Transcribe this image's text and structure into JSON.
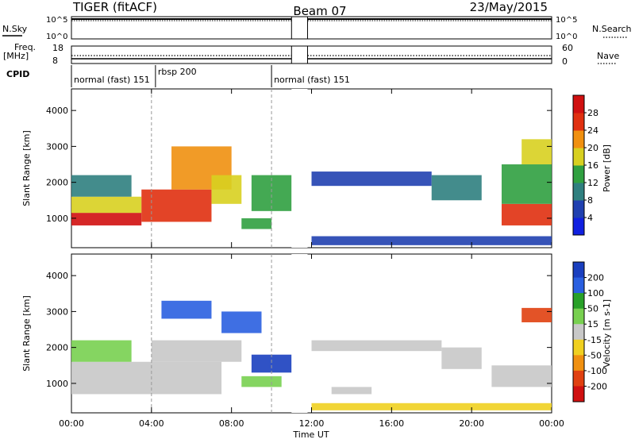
{
  "header": {
    "radar": "TIGER (fitACF)",
    "beam": "Beam 07",
    "date": "23/May/2015"
  },
  "summary": {
    "nsky_label": "N.Sky",
    "nsky_ticks": [
      "10^5",
      "10^0"
    ],
    "nsearch_label": "N.Search",
    "nsearch_ticks": [
      "10^5",
      "10^0"
    ],
    "freq_label": "Freq.",
    "freq_unit": "[MHz]",
    "freq_ticks": [
      "18",
      "8"
    ],
    "nave_label": "Nave",
    "nave_ticks": [
      "60",
      "0"
    ],
    "cpid_label": "CPID",
    "cpid_segments": [
      {
        "name": "normal (fast) 151",
        "start_h": 0,
        "end_h": 4.2
      },
      {
        "name": "rbsp 200",
        "start_h": 4.2,
        "end_h": 10
      },
      {
        "name": "normal (fast) 151",
        "start_h": 10,
        "end_h": 24
      }
    ],
    "data_gap_h": [
      11.0,
      11.8
    ]
  },
  "chart_data": [
    {
      "type": "heatmap",
      "name": "power-panel",
      "ylabel": "Slant Range [km]",
      "xlabel": "",
      "xlim": [
        0,
        24
      ],
      "ylim": [
        180,
        4600
      ],
      "yticks": [
        1000,
        2000,
        3000,
        4000
      ],
      "colorbar": {
        "label": "Power [dB]",
        "ticks": [
          "4",
          "8",
          "12",
          "16",
          "20",
          "24",
          "28"
        ],
        "colors": [
          "#1020e0",
          "#2040b0",
          "#2f7f7f",
          "#30a040",
          "#d8d020",
          "#f09010",
          "#e03010",
          "#d01010"
        ]
      },
      "bands": [
        {
          "t0": 0.0,
          "t1": 3.5,
          "r0": 800,
          "r1": 1150,
          "value": 28
        },
        {
          "t0": 0.0,
          "t1": 3.5,
          "r0": 1150,
          "r1": 1600,
          "value": 18
        },
        {
          "t0": 0.0,
          "t1": 3.0,
          "r0": 1600,
          "r1": 2200,
          "value": 8
        },
        {
          "t0": 3.5,
          "t1": 7.0,
          "r0": 900,
          "r1": 1800,
          "value": 26
        },
        {
          "t0": 5.0,
          "t1": 8.0,
          "r0": 1800,
          "r1": 3000,
          "value": 22
        },
        {
          "t0": 7.0,
          "t1": 8.5,
          "r0": 1400,
          "r1": 2200,
          "value": 18
        },
        {
          "t0": 8.5,
          "t1": 10.0,
          "r0": 700,
          "r1": 1000,
          "value": 12
        },
        {
          "t0": 9.0,
          "t1": 11.0,
          "r0": 1200,
          "r1": 2200,
          "value": 14
        },
        {
          "t0": 12.0,
          "t1": 18.0,
          "r0": 1900,
          "r1": 2300,
          "value": 6
        },
        {
          "t0": 18.0,
          "t1": 20.5,
          "r0": 1500,
          "r1": 2200,
          "value": 8
        },
        {
          "t0": 12.0,
          "t1": 24.0,
          "r0": 250,
          "r1": 500,
          "value": 6
        },
        {
          "t0": 21.5,
          "t1": 24.0,
          "r0": 800,
          "r1": 1400,
          "value": 26
        },
        {
          "t0": 21.5,
          "t1": 24.0,
          "r0": 1400,
          "r1": 2500,
          "value": 14
        },
        {
          "t0": 22.5,
          "t1": 24.0,
          "r0": 2500,
          "r1": 3200,
          "value": 18
        }
      ]
    },
    {
      "type": "heatmap",
      "name": "velocity-panel",
      "ylabel": "Slant Range [km]",
      "xlabel": "Time UT",
      "xlim": [
        0,
        24
      ],
      "ylim": [
        180,
        4600
      ],
      "yticks": [
        1000,
        2000,
        3000,
        4000
      ],
      "xticks": [
        "00:00",
        "04:00",
        "08:00",
        "12:00",
        "16:00",
        "20:00",
        "00:00"
      ],
      "colorbar": {
        "label": "Velocity [m s-1]",
        "ticks": [
          "200",
          "100",
          "50",
          "15",
          "-15",
          "-50",
          "-100",
          "-200"
        ],
        "colors": [
          "#1a3fbf",
          "#2a5fe0",
          "#28a028",
          "#78d050",
          "#c8c8c8",
          "#f0d020",
          "#f09010",
          "#e04010",
          "#d01010"
        ]
      },
      "bands": [
        {
          "t0": 0.0,
          "t1": 7.5,
          "r0": 700,
          "r1": 1600,
          "value": 0
        },
        {
          "t0": 0.0,
          "t1": 3.0,
          "r0": 1600,
          "r1": 2200,
          "value": 20
        },
        {
          "t0": 4.0,
          "t1": 8.5,
          "r0": 1600,
          "r1": 2200,
          "value": 0
        },
        {
          "t0": 4.5,
          "t1": 7.0,
          "r0": 2800,
          "r1": 3300,
          "value": 150
        },
        {
          "t0": 7.5,
          "t1": 9.5,
          "r0": 2400,
          "r1": 3000,
          "value": 180
        },
        {
          "t0": 9.0,
          "t1": 11.0,
          "r0": 1300,
          "r1": 1800,
          "value": 220
        },
        {
          "t0": 8.5,
          "t1": 10.5,
          "r0": 900,
          "r1": 1200,
          "value": 40
        },
        {
          "t0": 12.0,
          "t1": 18.5,
          "r0": 1900,
          "r1": 2200,
          "value": 0
        },
        {
          "t0": 12.0,
          "t1": 24.0,
          "r0": 250,
          "r1": 450,
          "value": -40
        },
        {
          "t0": 18.5,
          "t1": 20.5,
          "r0": 1400,
          "r1": 2000,
          "value": 0
        },
        {
          "t0": 21.0,
          "t1": 24.0,
          "r0": 900,
          "r1": 1500,
          "value": 0
        },
        {
          "t0": 22.5,
          "t1": 24.0,
          "r0": 2700,
          "r1": 3100,
          "value": -150
        },
        {
          "t0": 13.0,
          "t1": 15.0,
          "r0": 700,
          "r1": 900,
          "value": 0
        }
      ]
    }
  ]
}
